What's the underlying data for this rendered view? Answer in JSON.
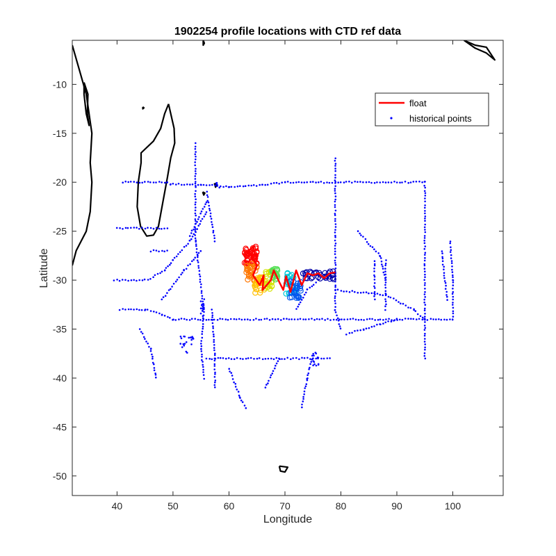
{
  "chart_data": {
    "type": "scatter",
    "title": "1902254 profile locations with CTD ref data",
    "xlabel": "Longitude",
    "ylabel": "Latitude",
    "xlim": [
      32,
      109
    ],
    "ylim": [
      -52,
      -5.5
    ],
    "xticks": [
      40,
      50,
      60,
      70,
      80,
      90,
      100
    ],
    "yticks": [
      -50,
      -45,
      -40,
      -35,
      -30,
      -25,
      -20,
      -15,
      -10
    ],
    "xtick_labels": [
      "40",
      "50",
      "60",
      "70",
      "80",
      "90",
      "100"
    ],
    "ytick_labels": [
      "-50",
      "-45",
      "-40",
      "-35",
      "-30",
      "-25",
      "-20",
      "-15",
      "-10"
    ],
    "grid": false,
    "legend": {
      "placement": "top-right",
      "entries": [
        "float",
        "historical points"
      ]
    },
    "colors": {
      "float": "#ff0000",
      "historical": "#0000ff",
      "coast": "#000000"
    },
    "coastlines": [
      {
        "name": "africa-coast",
        "points": [
          [
            32,
            -6
          ],
          [
            33.5,
            -9
          ],
          [
            34.5,
            -11
          ],
          [
            35.5,
            -15
          ],
          [
            35.2,
            -18
          ],
          [
            35.5,
            -20
          ],
          [
            35.2,
            -23
          ],
          [
            34.5,
            -25
          ],
          [
            32.7,
            -27
          ],
          [
            32,
            -28.5
          ]
        ]
      },
      {
        "name": "madagascar",
        "points": [
          [
            49.2,
            -12
          ],
          [
            50.2,
            -14.5
          ],
          [
            50.3,
            -16
          ],
          [
            49.6,
            -17.5
          ],
          [
            49.0,
            -19.5
          ],
          [
            48.2,
            -22
          ],
          [
            47.4,
            -24.5
          ],
          [
            46.5,
            -25.4
          ],
          [
            45.3,
            -25.5
          ],
          [
            44.2,
            -24.5
          ],
          [
            43.6,
            -22.5
          ],
          [
            43.8,
            -20
          ],
          [
            44.3,
            -18
          ],
          [
            44.3,
            -17
          ],
          [
            46.5,
            -15.8
          ],
          [
            47.8,
            -14.5
          ],
          [
            48.5,
            -13
          ],
          [
            49.2,
            -12
          ]
        ]
      },
      {
        "name": "lake-malawi",
        "points": [
          [
            34.1,
            -9.8
          ],
          [
            34.8,
            -11
          ],
          [
            34.7,
            -13
          ],
          [
            35.0,
            -14.2
          ],
          [
            34.5,
            -13
          ],
          [
            34.1,
            -11
          ],
          [
            34.1,
            -9.8
          ]
        ]
      },
      {
        "name": "comoros",
        "points": [
          [
            44.6,
            -12.3
          ],
          [
            44.8,
            -12.4
          ],
          [
            44.6,
            -12.5
          ],
          [
            44.6,
            -12.3
          ]
        ]
      },
      {
        "name": "mauritius",
        "points": [
          [
            57.4,
            -20.1
          ],
          [
            57.8,
            -20.3
          ],
          [
            57.6,
            -20.5
          ],
          [
            57.4,
            -20.1
          ]
        ]
      },
      {
        "name": "reunion",
        "points": [
          [
            55.3,
            -21.0
          ],
          [
            55.7,
            -21.1
          ],
          [
            55.5,
            -21.3
          ],
          [
            55.3,
            -21.0
          ]
        ]
      },
      {
        "name": "seychelles",
        "points": [
          [
            55.4,
            -5.5
          ],
          [
            55.6,
            -5.8
          ],
          [
            55.4,
            -6.0
          ],
          [
            55.4,
            -5.5
          ]
        ]
      },
      {
        "name": "kerguelen",
        "points": [
          [
            69.0,
            -49.0
          ],
          [
            70.5,
            -49.1
          ],
          [
            70.0,
            -49.6
          ],
          [
            69.2,
            -49.5
          ],
          [
            69.0,
            -49.0
          ]
        ]
      },
      {
        "name": "sumatra-tip",
        "points": [
          [
            102,
            -5.5
          ],
          [
            104,
            -6.0
          ],
          [
            106,
            -6.2
          ],
          [
            107.5,
            -7.5
          ],
          [
            106,
            -6.8
          ],
          [
            104,
            -6.3
          ],
          [
            102,
            -5.5
          ]
        ]
      }
    ],
    "historical_lines": [
      [
        [
          41,
          -20
        ],
        [
          49,
          -20
        ],
        [
          49.5,
          -20.2
        ],
        [
          55,
          -20.2
        ],
        [
          60,
          -20.5
        ],
        [
          66,
          -20.3
        ],
        [
          70,
          -20
        ],
        [
          95,
          -20
        ]
      ],
      [
        [
          40,
          -24.7
        ],
        [
          49,
          -24.7
        ]
      ],
      [
        [
          39.5,
          -30
        ],
        [
          45.5,
          -30
        ]
      ],
      [
        [
          40.5,
          -33
        ],
        [
          45,
          -33
        ],
        [
          48,
          -33.5
        ],
        [
          50,
          -34
        ],
        [
          95,
          -34
        ]
      ],
      [
        [
          54,
          -16
        ],
        [
          54,
          -26
        ],
        [
          55.5,
          -33
        ],
        [
          55,
          -37
        ],
        [
          55.5,
          -40
        ]
      ],
      [
        [
          57,
          -33
        ],
        [
          57.5,
          -38
        ],
        [
          57.5,
          -41
        ]
      ],
      [
        [
          79,
          -17.5
        ],
        [
          79,
          -33
        ],
        [
          80,
          -35
        ]
      ],
      [
        [
          95,
          -20
        ],
        [
          95,
          -38
        ]
      ],
      [
        [
          46,
          -29.8
        ],
        [
          48.5,
          -29
        ],
        [
          50,
          -28
        ],
        [
          53,
          -26
        ],
        [
          56,
          -23
        ]
      ],
      [
        [
          48,
          -32
        ],
        [
          52,
          -29
        ],
        [
          55,
          -27
        ]
      ],
      [
        [
          83,
          -25
        ],
        [
          87,
          -27.5
        ],
        [
          88,
          -30
        ]
      ],
      [
        [
          79,
          -31
        ],
        [
          88,
          -31.5
        ],
        [
          93,
          -33
        ],
        [
          95,
          -34
        ],
        [
          100,
          -34
        ]
      ],
      [
        [
          86,
          -28
        ],
        [
          86,
          -32
        ]
      ],
      [
        [
          88,
          -28
        ],
        [
          88,
          -33
        ]
      ],
      [
        [
          99.5,
          -26
        ],
        [
          100,
          -30
        ],
        [
          100,
          -34
        ]
      ],
      [
        [
          98,
          -27
        ],
        [
          99,
          -32
        ]
      ],
      [
        [
          72,
          -33
        ],
        [
          74,
          -31
        ],
        [
          76,
          -30
        ]
      ],
      [
        [
          81,
          -35.5
        ],
        [
          84,
          -35
        ],
        [
          87,
          -34.5
        ],
        [
          90,
          -34
        ]
      ],
      [
        [
          56,
          -38
        ],
        [
          78,
          -38
        ]
      ],
      [
        [
          60,
          -39
        ],
        [
          62,
          -42
        ],
        [
          63,
          -43
        ]
      ],
      [
        [
          75,
          -37.5
        ],
        [
          74,
          -40
        ],
        [
          73,
          -43
        ]
      ],
      [
        [
          44,
          -35
        ],
        [
          46,
          -37
        ],
        [
          47,
          -40
        ]
      ],
      [
        [
          46,
          -27
        ],
        [
          49,
          -27
        ]
      ],
      [
        [
          53,
          -25.5
        ],
        [
          56,
          -22
        ]
      ],
      [
        [
          69,
          -38
        ],
        [
          66.5,
          -41
        ]
      ],
      [
        [
          56,
          -21
        ],
        [
          57.5,
          -26
        ]
      ]
    ],
    "historical_clusters": [
      {
        "center": [
          52.5,
          -36.5
        ],
        "spread": [
          1.2,
          1.0
        ],
        "count": 20
      },
      {
        "center": [
          55.3,
          -32.5
        ],
        "spread": [
          0.4,
          1.2
        ],
        "count": 14
      },
      {
        "center": [
          75.5,
          -38.2
        ],
        "spread": [
          0.5,
          0.8
        ],
        "count": 14
      },
      {
        "center": [
          58,
          -20.3
        ],
        "spread": [
          0.3,
          0.3
        ],
        "count": 5
      }
    ],
    "float_track": [
      [
        64,
        -27.5
      ],
      [
        64.5,
        -26.5
      ],
      [
        63.5,
        -27
      ],
      [
        65,
        -28.5
      ],
      [
        64.3,
        -29.5
      ],
      [
        65.5,
        -30.5
      ],
      [
        66.2,
        -29.5
      ],
      [
        66,
        -31
      ],
      [
        67.5,
        -30
      ],
      [
        68,
        -29
      ],
      [
        69,
        -30.2
      ],
      [
        69.7,
        -31
      ],
      [
        70.2,
        -29.6
      ],
      [
        71,
        -31.2
      ],
      [
        72,
        -29
      ],
      [
        73,
        -30.5
      ],
      [
        74,
        -29.3
      ],
      [
        75,
        -29.5
      ],
      [
        76,
        -29.3
      ],
      [
        77,
        -29.8
      ],
      [
        78,
        -29.3
      ],
      [
        79,
        -29.2
      ]
    ],
    "profile_rings": [
      {
        "color": "#ff0000",
        "center": [
          64,
          -27.5
        ],
        "spread": [
          1.2,
          1.0
        ],
        "count": 40
      },
      {
        "color": "#ff7700",
        "center": [
          64,
          -29.2
        ],
        "spread": [
          1.0,
          0.9
        ],
        "count": 28
      },
      {
        "color": "#ffbf00",
        "center": [
          65.5,
          -30.5
        ],
        "spread": [
          0.9,
          0.8
        ],
        "count": 28
      },
      {
        "color": "#d4e300",
        "center": [
          67.2,
          -30
        ],
        "spread": [
          0.7,
          0.9
        ],
        "count": 22
      },
      {
        "color": "#55e055",
        "center": [
          68.2,
          -29.4
        ],
        "spread": [
          0.5,
          0.6
        ],
        "count": 18
      },
      {
        "color": "#00c8d8",
        "center": [
          71,
          -30.3
        ],
        "spread": [
          0.9,
          1.1
        ],
        "count": 24
      },
      {
        "color": "#0055ee",
        "center": [
          71.8,
          -31
        ],
        "spread": [
          1.1,
          0.9
        ],
        "count": 26
      },
      {
        "color": "#0000a8",
        "center": [
          76,
          -29.5
        ],
        "spread": [
          2.8,
          0.4
        ],
        "count": 30
      }
    ]
  }
}
